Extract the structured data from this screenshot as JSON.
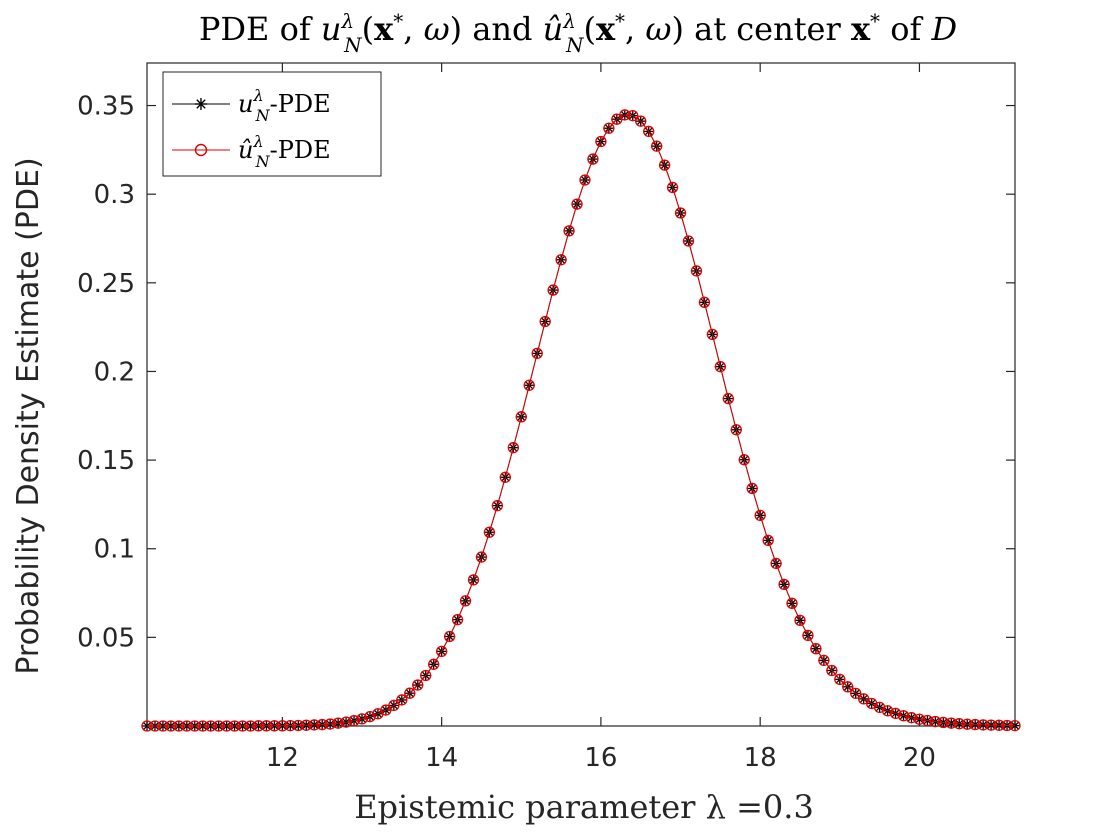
{
  "chart_data": {
    "type": "line",
    "title": "PDE of u_N^λ(x*, ω) and û_N^λ(x*, ω) at center x* of D",
    "title_parts": {
      "a": "PDE of ",
      "b": " and ",
      "c": " at center ",
      "d": " of "
    },
    "xlabel": "Epistemic parameter λ =0.3",
    "ylabel": "Probability Density Estimate (PDE)",
    "xlim": [
      10.3,
      21.2
    ],
    "ylim": [
      0,
      0.374
    ],
    "xticks": [
      12,
      14,
      16,
      18,
      20
    ],
    "yticks": [
      0.05,
      0.1,
      0.15,
      0.2,
      0.25,
      0.3,
      0.35
    ],
    "ytick_labels": [
      "0.05",
      "0.1",
      "0.15",
      "0.2",
      "0.25",
      "0.3",
      "0.35"
    ],
    "grid": false,
    "legend_position": "top-left",
    "x": [
      10.3,
      10.4,
      10.5,
      10.6,
      10.7,
      10.8,
      10.9,
      11.0,
      11.1,
      11.2,
      11.3,
      11.4,
      11.5,
      11.6,
      11.7,
      11.8,
      11.9,
      12.0,
      12.1,
      12.2,
      12.3,
      12.4,
      12.5,
      12.6,
      12.7,
      12.8,
      12.9,
      13.0,
      13.1,
      13.2,
      13.3,
      13.4,
      13.5,
      13.6,
      13.7,
      13.8,
      13.9,
      14.0,
      14.1,
      14.2,
      14.3,
      14.4,
      14.5,
      14.6,
      14.7,
      14.8,
      14.9,
      15.0,
      15.1,
      15.2,
      15.3,
      15.4,
      15.5,
      15.6,
      15.7,
      15.8,
      15.9,
      16.0,
      16.1,
      16.2,
      16.3,
      16.4,
      16.5,
      16.6,
      16.7,
      16.8,
      16.9,
      17.0,
      17.1,
      17.2,
      17.3,
      17.4,
      17.5,
      17.6,
      17.7,
      17.8,
      17.9,
      18.0,
      18.1,
      18.2,
      18.3,
      18.4,
      18.5,
      18.6,
      18.7,
      18.8,
      18.9,
      19.0,
      19.1,
      19.2,
      19.3,
      19.4,
      19.5,
      19.6,
      19.7,
      19.8,
      19.9,
      20.0,
      20.1,
      20.2,
      20.3,
      20.4,
      20.5,
      20.6,
      20.7,
      20.8,
      20.9,
      21.0,
      21.1,
      21.2
    ],
    "series": [
      {
        "name": "u_N^λ-PDE",
        "color": "#000000",
        "marker": "asterisk",
        "values": [
          0.0,
          0.0,
          0.0,
          0.0,
          0.0,
          0.0,
          0.0,
          0.0,
          0.0,
          0.0,
          0.0,
          0.0,
          0.0,
          0.0,
          0.0001,
          0.0001,
          0.0001,
          0.0001,
          0.0002,
          0.0003,
          0.0004,
          0.0006,
          0.0008,
          0.0011,
          0.0016,
          0.0022,
          0.003,
          0.004,
          0.0053,
          0.0069,
          0.009,
          0.0116,
          0.0147,
          0.0185,
          0.0231,
          0.0285,
          0.0348,
          0.0421,
          0.0505,
          0.06,
          0.0706,
          0.0824,
          0.0953,
          0.1093,
          0.1243,
          0.1403,
          0.157,
          0.1744,
          0.1922,
          0.2102,
          0.2282,
          0.2459,
          0.263,
          0.2793,
          0.2944,
          0.308,
          0.3198,
          0.3297,
          0.3372,
          0.3423,
          0.3447,
          0.3443,
          0.3412,
          0.3354,
          0.3271,
          0.3164,
          0.3038,
          0.2894,
          0.2736,
          0.2567,
          0.239,
          0.2209,
          0.2027,
          0.1847,
          0.1671,
          0.1502,
          0.134,
          0.1188,
          0.1047,
          0.0917,
          0.0799,
          0.0692,
          0.0596,
          0.0511,
          0.0436,
          0.037,
          0.0313,
          0.0263,
          0.0221,
          0.0184,
          0.0153,
          0.0127,
          0.0105,
          0.0086,
          0.0071,
          0.0058,
          0.0047,
          0.0038,
          0.0031,
          0.0025,
          0.002,
          0.0016,
          0.0013,
          0.001,
          0.0008,
          0.0006,
          0.0005,
          0.0004,
          0.0003,
          0.0002
        ]
      },
      {
        "name": "û_N^λ-PDE",
        "color": "#e00000",
        "marker": "circle",
        "values": [
          0.0,
          0.0,
          0.0,
          0.0,
          0.0,
          0.0,
          0.0,
          0.0,
          0.0,
          0.0,
          0.0,
          0.0,
          0.0,
          0.0,
          0.0001,
          0.0001,
          0.0001,
          0.0001,
          0.0002,
          0.0003,
          0.0004,
          0.0006,
          0.0008,
          0.0011,
          0.0016,
          0.0022,
          0.003,
          0.004,
          0.0053,
          0.0069,
          0.009,
          0.0116,
          0.0147,
          0.0185,
          0.0231,
          0.0285,
          0.0348,
          0.0421,
          0.0505,
          0.06,
          0.0706,
          0.0824,
          0.0953,
          0.1093,
          0.1243,
          0.1403,
          0.157,
          0.1744,
          0.1922,
          0.2102,
          0.2282,
          0.2459,
          0.263,
          0.2793,
          0.2944,
          0.308,
          0.3198,
          0.3297,
          0.3372,
          0.3423,
          0.3447,
          0.3443,
          0.3412,
          0.3354,
          0.3271,
          0.3164,
          0.3038,
          0.2894,
          0.2736,
          0.2567,
          0.239,
          0.2209,
          0.2027,
          0.1847,
          0.1671,
          0.1502,
          0.134,
          0.1188,
          0.1047,
          0.0917,
          0.0799,
          0.0692,
          0.0596,
          0.0511,
          0.0436,
          0.037,
          0.0313,
          0.0263,
          0.0221,
          0.0184,
          0.0153,
          0.0127,
          0.0105,
          0.0086,
          0.0071,
          0.0058,
          0.0047,
          0.0038,
          0.0031,
          0.0025,
          0.002,
          0.0016,
          0.0013,
          0.001,
          0.0008,
          0.0006,
          0.0005,
          0.0004,
          0.0003,
          0.0002
        ]
      }
    ]
  }
}
